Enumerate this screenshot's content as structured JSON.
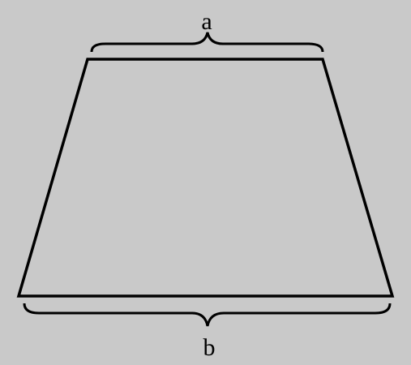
{
  "figure": {
    "labels": {
      "top": "a",
      "bottom": "b"
    },
    "colors": {
      "background": "#c9c9c9",
      "stroke": "#000000"
    },
    "shape": "trapezoid"
  }
}
